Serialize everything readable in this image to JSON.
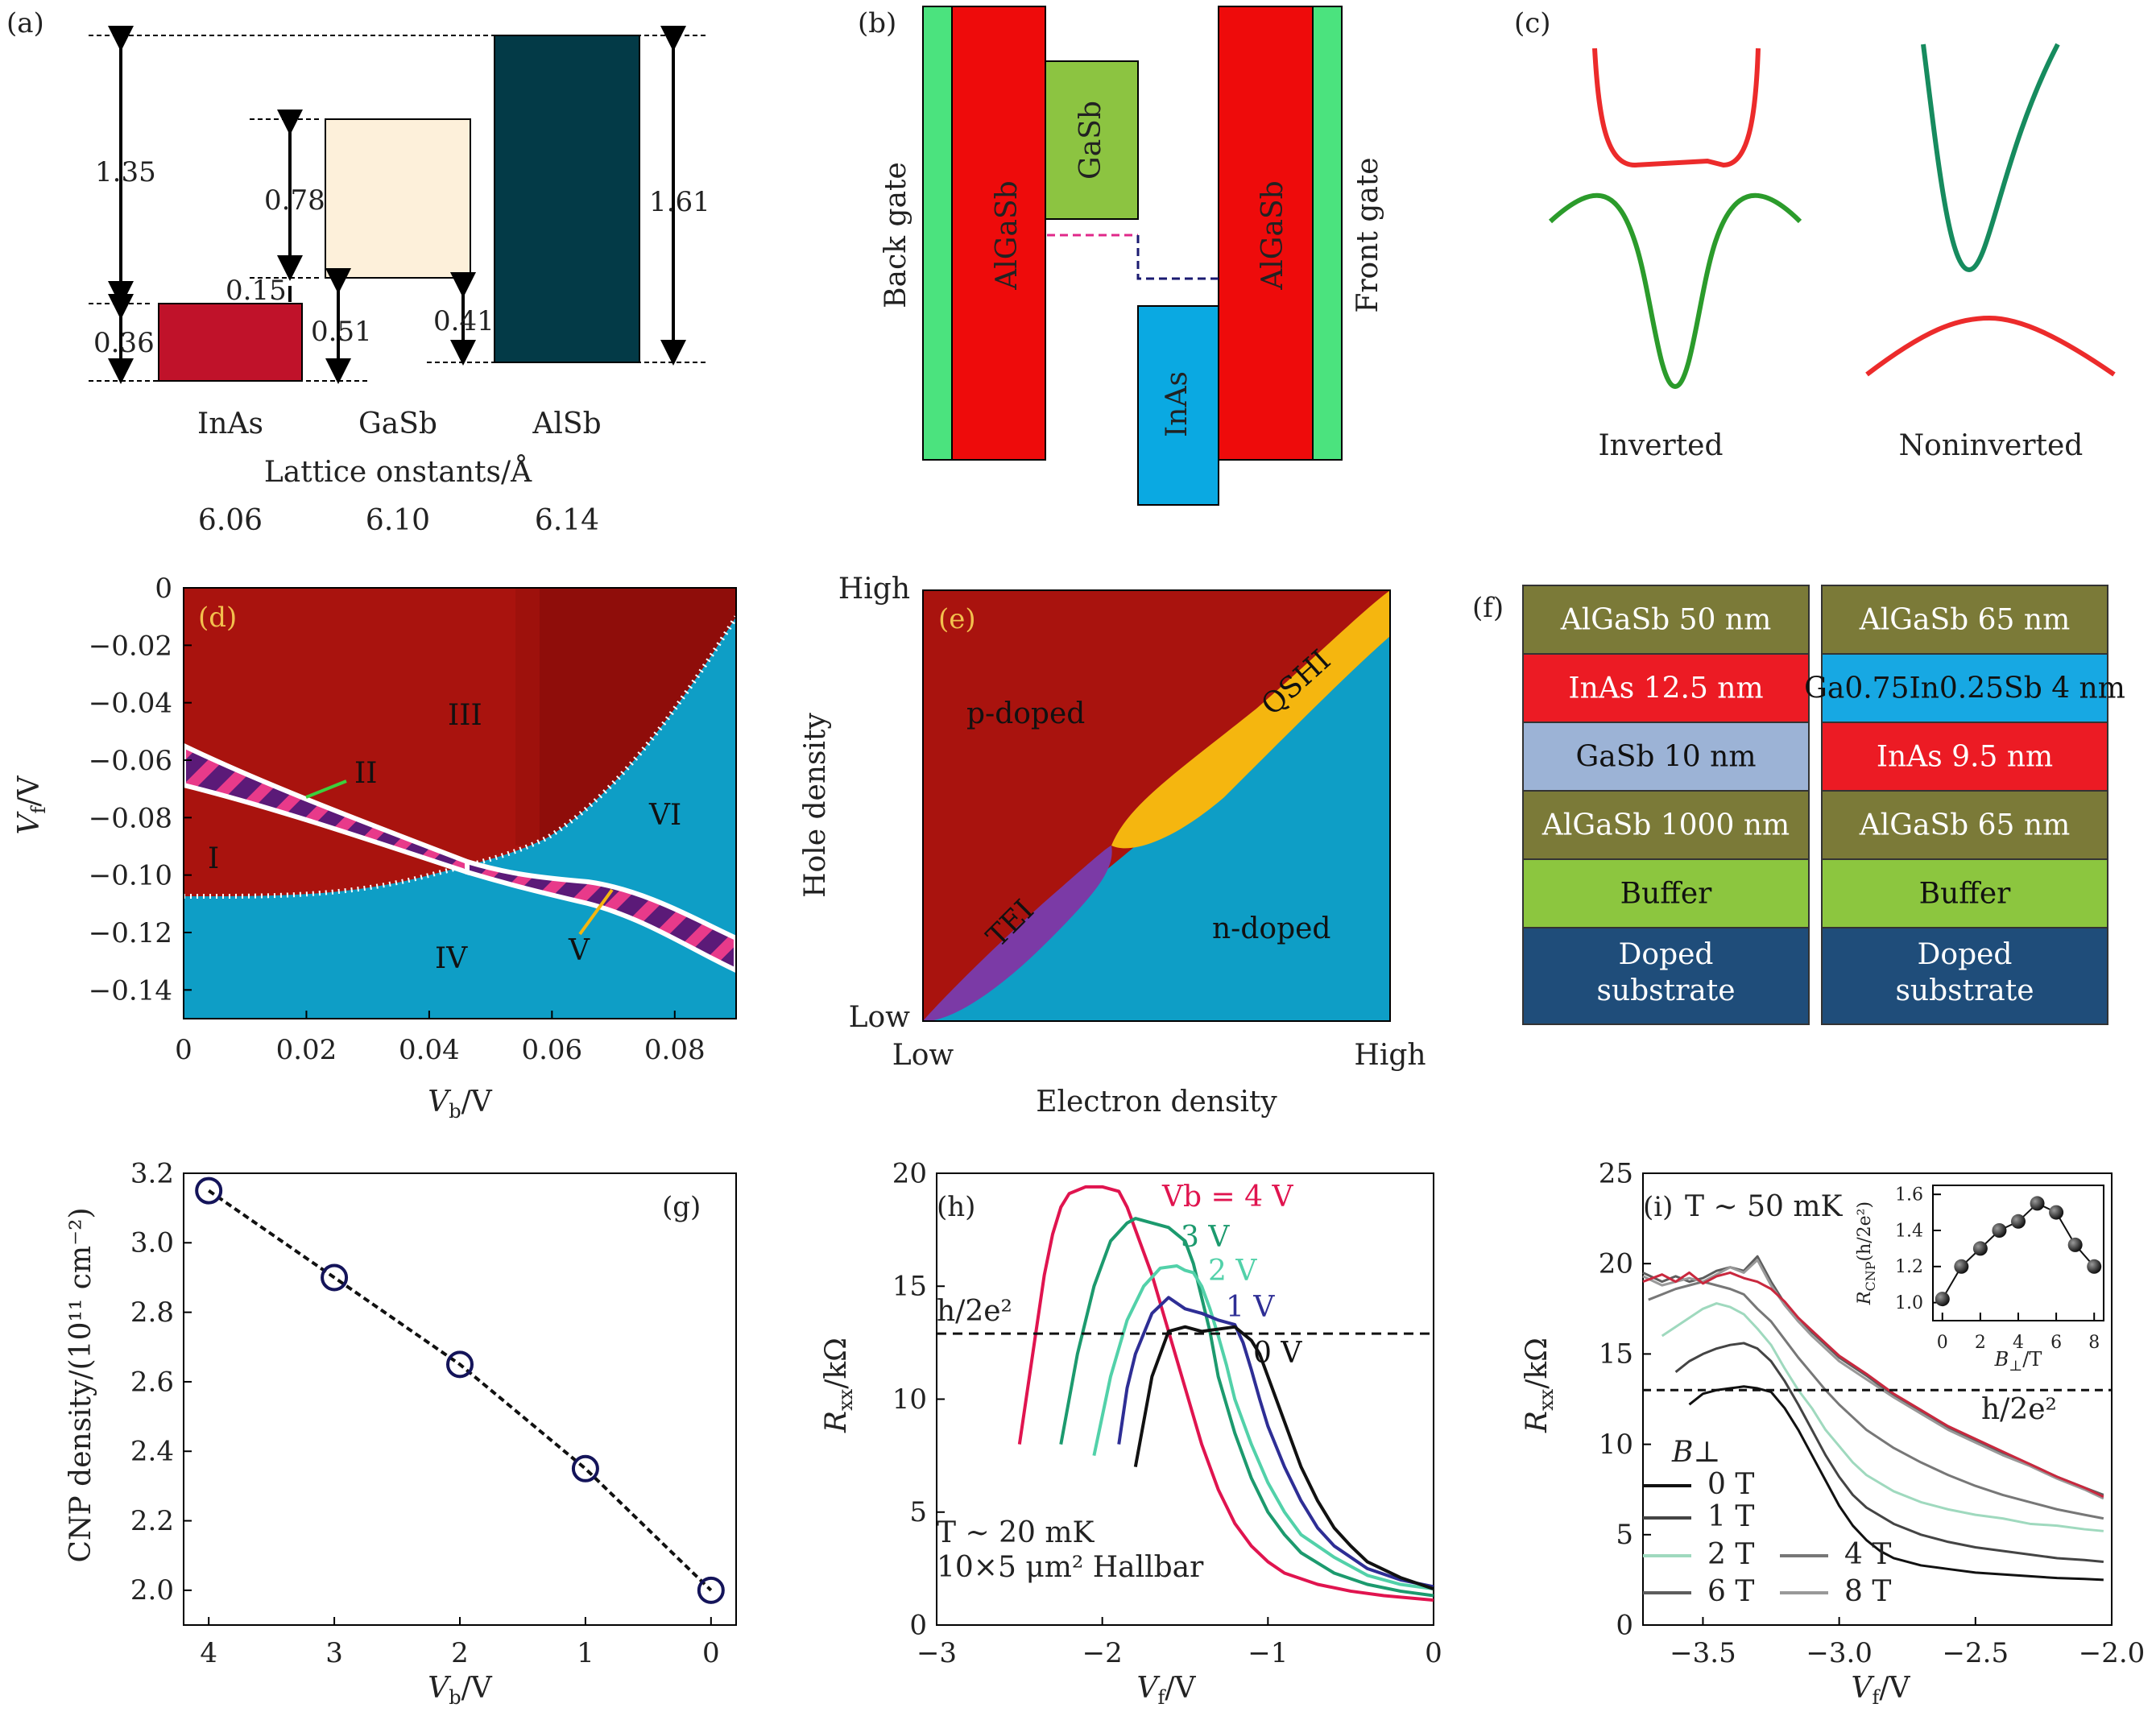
{
  "chart_data": [
    {
      "panel": "a",
      "type": "diagram",
      "materials": [
        {
          "name": "InAs",
          "lattice": "6.06"
        },
        {
          "name": "GaSb",
          "lattice": "6.10"
        },
        {
          "name": "AlSb",
          "lattice": "6.14"
        }
      ],
      "energies": [
        "1.35",
        "0.78",
        "0.15",
        "0.36",
        "0.51",
        "0.41",
        "1.61"
      ],
      "lattice_label": "Lattice onstants/Å",
      "colors": {
        "InAs": "#c0122a",
        "GaSb": "#fdf0da",
        "AlSb": "#033a47"
      }
    },
    {
      "panel": "b",
      "type": "diagram",
      "layers": [
        "Back gate",
        "AlGaSb",
        "GaSb",
        "InAs",
        "AlGaSb",
        "Front gate"
      ],
      "colors": {
        "gate": "#4be37e",
        "AlGaSb": "#ee0b0b",
        "GaSb": "#8cc441",
        "InAs": "#0aa9e2"
      }
    },
    {
      "panel": "c",
      "type": "diagram",
      "labels": [
        "Inverted",
        "Noninverted"
      ]
    },
    {
      "panel": "d",
      "type": "heatmap",
      "xlabel_main": "V",
      "xlabel_sub": "b",
      "xlabel_unit": "/V",
      "ylabel_main": "V",
      "ylabel_sub": "f",
      "ylabel_unit": "/V",
      "xlim": [
        0,
        0.09
      ],
      "ylim": [
        -0.15,
        0
      ],
      "xticks": [
        "0",
        "0.02",
        "0.04",
        "0.06",
        "0.08"
      ],
      "yticks": [
        "0",
        "−0.02",
        "−0.04",
        "−0.06",
        "−0.08",
        "−0.10",
        "−0.12",
        "−0.14"
      ],
      "regions": [
        "I",
        "II",
        "III",
        "IV",
        "V",
        "VI"
      ],
      "colors": {
        "p": "#a9130e",
        "n": "#0e9ec6",
        "band": "#7a1a4e"
      }
    },
    {
      "panel": "e",
      "type": "diagram",
      "xlabel": "Electron density",
      "ylabel": "Hole density",
      "xticks": [
        "Low",
        "High"
      ],
      "yticks": [
        "Low",
        "High"
      ],
      "regions": [
        "p-doped",
        "QSHI",
        "TEI",
        "n-doped"
      ],
      "colors": {
        "p": "#a9130e",
        "n": "#0e9ec6",
        "QSHI": "#f5b60f",
        "TEI": "#7b3aa6"
      }
    },
    {
      "panel": "f",
      "type": "table",
      "stacks": [
        [
          {
            "label": "AlGaSb 50 nm",
            "color": "#7b7a38"
          },
          {
            "label": "InAs 12.5 nm",
            "color": "#ec1b24"
          },
          {
            "label": "GaSb 10 nm",
            "color": "#9cb3d6"
          },
          {
            "label": "AlGaSb 1000 nm",
            "color": "#7b7a38"
          },
          {
            "label": "Buffer",
            "color": "#8cc63f"
          },
          {
            "label": "Doped substrate",
            "color": "#1f4d7a"
          }
        ],
        [
          {
            "label": "AlGaSb 65 nm",
            "color": "#7b7a38"
          },
          {
            "label": "Ga0.75In0.25Sb 4 nm",
            "color": "#17a8e3"
          },
          {
            "label": "InAs 9.5 nm",
            "color": "#ec1b24"
          },
          {
            "label": "AlGaSb 65 nm",
            "color": "#7b7a38"
          },
          {
            "label": "Buffer",
            "color": "#8cc63f"
          },
          {
            "label": "Doped substrate",
            "color": "#1f4d7a"
          }
        ]
      ]
    },
    {
      "panel": "g",
      "type": "scatter",
      "xlabel_main": "V",
      "xlabel_sub": "b",
      "xlabel_unit": "/V",
      "ylabel": "CNP density/(10¹¹ cm⁻²)",
      "x": [
        4,
        3,
        2,
        1,
        0
      ],
      "y": [
        3.15,
        2.9,
        2.65,
        2.35,
        2.0
      ],
      "xlim": [
        4.2,
        -0.2
      ],
      "ylim": [
        1.9,
        3.2
      ],
      "xticks": [
        "4",
        "3",
        "2",
        "1",
        "0"
      ],
      "yticks": [
        "2.0",
        "2.2",
        "2.4",
        "2.6",
        "2.8",
        "3.0",
        "3.2"
      ]
    },
    {
      "panel": "h",
      "type": "line",
      "xlabel_main": "V",
      "xlabel_sub": "f",
      "xlabel_unit": "/V",
      "ylabel_main": "R",
      "ylabel_sub": "xx",
      "ylabel_unit": "/kΩ",
      "xlim": [
        -3,
        0
      ],
      "ylim": [
        0,
        20
      ],
      "xticks": [
        "−3",
        "−2",
        "−1",
        "0"
      ],
      "yticks": [
        "0",
        "5",
        "10",
        "15",
        "20"
      ],
      "hline": 12.9,
      "hline_label": "h/2e²",
      "annotation": [
        "T ∼ 20 mK",
        "10×5 μm² Hallbar"
      ],
      "series": [
        {
          "name": "Vb = 4 V",
          "color": "#e0144f",
          "x": [
            -2.5,
            -2.45,
            -2.4,
            -2.35,
            -2.3,
            -2.25,
            -2.2,
            -2.1,
            -2.0,
            -1.9,
            -1.85,
            -1.8,
            -1.7,
            -1.6,
            -1.5,
            -1.4,
            -1.3,
            -1.2,
            -1.1,
            -1.0,
            -0.9,
            -0.7,
            -0.5,
            -0.3,
            0
          ],
          "y": [
            8.0,
            10.5,
            13.0,
            15.5,
            17.3,
            18.5,
            19.1,
            19.4,
            19.4,
            19.2,
            18.5,
            17.5,
            15.5,
            13.0,
            10.5,
            8.0,
            6.0,
            4.5,
            3.5,
            2.8,
            2.3,
            1.8,
            1.5,
            1.3,
            1.1
          ]
        },
        {
          "name": "3 V",
          "color": "#1c9a6e",
          "x": [
            -2.25,
            -2.15,
            -2.05,
            -1.95,
            -1.85,
            -1.8,
            -1.7,
            -1.6,
            -1.5,
            -1.45,
            -1.4,
            -1.35,
            -1.3,
            -1.2,
            -1.1,
            -1.0,
            -0.9,
            -0.8,
            -0.6,
            -0.4,
            -0.2,
            0
          ],
          "y": [
            8.0,
            12.0,
            15.0,
            17.0,
            17.8,
            18.0,
            17.8,
            17.6,
            17.0,
            16.0,
            14.5,
            13.0,
            11.0,
            8.5,
            6.5,
            5.0,
            4.0,
            3.2,
            2.3,
            1.8,
            1.5,
            1.3
          ]
        },
        {
          "name": "2 V",
          "color": "#52d1a9",
          "x": [
            -2.05,
            -1.95,
            -1.85,
            -1.75,
            -1.65,
            -1.55,
            -1.5,
            -1.45,
            -1.4,
            -1.35,
            -1.3,
            -1.25,
            -1.2,
            -1.1,
            -1.0,
            -0.9,
            -0.8,
            -0.6,
            -0.4,
            -0.2,
            0
          ],
          "y": [
            7.5,
            11.0,
            13.5,
            15.0,
            15.8,
            15.9,
            15.7,
            15.6,
            15.0,
            14.0,
            12.8,
            11.5,
            10.0,
            8.0,
            6.3,
            5.0,
            4.0,
            3.0,
            2.2,
            1.8,
            1.6
          ]
        },
        {
          "name": "1 V",
          "color": "#2e2e95",
          "x": [
            -1.9,
            -1.85,
            -1.8,
            -1.7,
            -1.6,
            -1.5,
            -1.4,
            -1.3,
            -1.2,
            -1.15,
            -1.1,
            -1.05,
            -1.0,
            -0.9,
            -0.8,
            -0.7,
            -0.6,
            -0.4,
            -0.2,
            0
          ],
          "y": [
            8.0,
            10.5,
            12.0,
            13.8,
            14.5,
            14.0,
            13.8,
            13.5,
            13.3,
            12.5,
            11.3,
            10.0,
            8.8,
            7.0,
            5.5,
            4.3,
            3.5,
            2.5,
            2.0,
            1.7
          ]
        },
        {
          "name": "0 V",
          "color": "#111111",
          "x": [
            -1.8,
            -1.75,
            -1.7,
            -1.6,
            -1.5,
            -1.4,
            -1.3,
            -1.2,
            -1.1,
            -1.05,
            -1.0,
            -0.95,
            -0.9,
            -0.8,
            -0.7,
            -0.6,
            -0.5,
            -0.4,
            -0.2,
            0
          ],
          "y": [
            7.0,
            9.0,
            11.0,
            13.0,
            13.2,
            13.0,
            13.1,
            13.2,
            12.6,
            12.0,
            11.0,
            10.0,
            9.0,
            7.0,
            5.5,
            4.3,
            3.5,
            2.8,
            2.1,
            1.6
          ]
        }
      ]
    },
    {
      "panel": "i",
      "type": "line",
      "xlabel_main": "V",
      "xlabel_sub": "f",
      "xlabel_unit": "/V",
      "ylabel_main": "R",
      "ylabel_sub": "xx",
      "ylabel_unit": "/kΩ",
      "xlim": [
        -3.72,
        -2.0
      ],
      "ylim": [
        0,
        25
      ],
      "xticks": [
        "−3.5",
        "−3.0",
        "−2.5",
        "−2.0"
      ],
      "yticks": [
        "0",
        "5",
        "10",
        "15",
        "20",
        "25"
      ],
      "hline": 13.0,
      "hline_label": "h/2e²",
      "annotation": "T ∼ 50 mK",
      "legend_title": "B⊥",
      "series": [
        {
          "name": "0 T",
          "color": "#111111",
          "x": [
            -3.55,
            -3.5,
            -3.45,
            -3.4,
            -3.35,
            -3.3,
            -3.25,
            -3.2,
            -3.15,
            -3.1,
            -3.05,
            -3.0,
            -2.95,
            -2.9,
            -2.85,
            -2.8,
            -2.7,
            -2.6,
            -2.5,
            -2.4,
            -2.3,
            -2.2,
            -2.1,
            -2.03
          ],
          "y": [
            12.2,
            12.8,
            13.0,
            13.1,
            13.2,
            13.1,
            12.9,
            12.0,
            10.8,
            9.4,
            8.0,
            6.6,
            5.5,
            4.7,
            4.1,
            3.7,
            3.3,
            3.1,
            2.9,
            2.8,
            2.7,
            2.6,
            2.55,
            2.5
          ]
        },
        {
          "name": "1 T",
          "color": "#444444",
          "x": [
            -3.6,
            -3.55,
            -3.5,
            -3.45,
            -3.4,
            -3.35,
            -3.3,
            -3.25,
            -3.2,
            -3.15,
            -3.1,
            -3.05,
            -3.0,
            -2.95,
            -2.9,
            -2.8,
            -2.7,
            -2.6,
            -2.5,
            -2.4,
            -2.3,
            -2.2,
            -2.1,
            -2.03
          ],
          "y": [
            14.0,
            14.6,
            15.0,
            15.3,
            15.5,
            15.6,
            15.3,
            14.6,
            13.5,
            12.2,
            10.8,
            9.4,
            8.2,
            7.2,
            6.5,
            5.6,
            5.0,
            4.6,
            4.3,
            4.1,
            3.9,
            3.7,
            3.6,
            3.5
          ]
        },
        {
          "name": "2 T",
          "color": "#9fd9be",
          "x": [
            -3.65,
            -3.6,
            -3.55,
            -3.5,
            -3.45,
            -3.4,
            -3.35,
            -3.3,
            -3.25,
            -3.2,
            -3.15,
            -3.1,
            -3.05,
            -3.0,
            -2.95,
            -2.9,
            -2.8,
            -2.7,
            -2.6,
            -2.5,
            -2.4,
            -2.3,
            -2.2,
            -2.1,
            -2.03
          ],
          "y": [
            16.0,
            16.5,
            17.0,
            17.5,
            17.8,
            17.6,
            17.2,
            16.4,
            15.5,
            14.2,
            13.0,
            12.0,
            10.8,
            9.9,
            9.0,
            8.3,
            7.4,
            6.8,
            6.4,
            6.1,
            5.9,
            5.6,
            5.5,
            5.3,
            5.2
          ]
        },
        {
          "name": "4 T",
          "color": "#777777",
          "x": [
            -3.7,
            -3.65,
            -3.6,
            -3.55,
            -3.5,
            -3.45,
            -3.4,
            -3.35,
            -3.3,
            -3.25,
            -3.2,
            -3.15,
            -3.1,
            -3.05,
            -3.0,
            -2.95,
            -2.9,
            -2.8,
            -2.7,
            -2.6,
            -2.5,
            -2.4,
            -2.3,
            -2.2,
            -2.1,
            -2.03
          ],
          "y": [
            18.0,
            18.3,
            18.6,
            18.8,
            19.0,
            18.8,
            18.6,
            18.3,
            17.5,
            16.8,
            15.8,
            14.8,
            13.9,
            13.0,
            12.2,
            11.5,
            10.8,
            9.8,
            9.0,
            8.3,
            7.7,
            7.2,
            6.8,
            6.4,
            6.1,
            5.9
          ]
        },
        {
          "name": "6 T",
          "color": "#5d5d5d",
          "x": [
            -3.72,
            -3.65,
            -3.6,
            -3.55,
            -3.5,
            -3.45,
            -3.4,
            -3.35,
            -3.3,
            -3.25,
            -3.2,
            -3.15,
            -3.1,
            -3.05,
            -3.0,
            -2.9,
            -2.8,
            -2.7,
            -2.6,
            -2.5,
            -2.4,
            -2.3,
            -2.2,
            -2.1,
            -2.03
          ],
          "y": [
            19.5,
            19.0,
            19.3,
            19.0,
            19.2,
            19.6,
            19.8,
            19.6,
            20.4,
            19.0,
            17.8,
            17.0,
            16.2,
            15.5,
            14.8,
            13.8,
            12.7,
            11.8,
            10.9,
            10.2,
            9.5,
            8.9,
            8.2,
            7.6,
            7.2
          ]
        },
        {
          "name": "8 T",
          "color": "#999999",
          "x": [
            -3.72,
            -3.65,
            -3.6,
            -3.55,
            -3.5,
            -3.45,
            -3.4,
            -3.35,
            -3.3,
            -3.25,
            -3.2,
            -3.15,
            -3.1,
            -3.05,
            -3.0,
            -2.9,
            -2.8,
            -2.7,
            -2.6,
            -2.5,
            -2.4,
            -2.3,
            -2.2,
            -2.1,
            -2.03
          ],
          "y": [
            19.3,
            18.8,
            19.0,
            19.2,
            19.0,
            19.4,
            19.8,
            19.5,
            20.2,
            18.8,
            17.7,
            16.8,
            16.0,
            15.3,
            14.6,
            13.6,
            12.6,
            11.7,
            10.8,
            10.1,
            9.4,
            8.8,
            8.1,
            7.5,
            7.0
          ]
        },
        {
          "name": "",
          "color": "#c9283e",
          "x": [
            -3.72,
            -3.65,
            -3.6,
            -3.55,
            -3.5,
            -3.45,
            -3.4,
            -3.35,
            -3.3,
            -3.25,
            -3.2,
            -3.15,
            -3.1,
            -3.05,
            -3.0,
            -2.9,
            -2.8,
            -2.7,
            -2.6,
            -2.5,
            -2.4,
            -2.3,
            -2.2,
            -2.1,
            -2.03
          ],
          "y": [
            19.0,
            19.4,
            19.0,
            19.5,
            18.9,
            19.3,
            19.5,
            19.2,
            19.0,
            18.6,
            17.9,
            17.0,
            16.3,
            15.6,
            14.9,
            13.9,
            12.8,
            11.9,
            11.0,
            10.3,
            9.6,
            8.9,
            8.2,
            7.6,
            7.1
          ]
        }
      ],
      "inset": {
        "xlabel_main": "B",
        "xlabel_sub": "⊥",
        "xlabel_unit": "/T",
        "ylabel_main": "R",
        "ylabel_sub": "CNP",
        "ylabel_unit": "(h/2e²)",
        "x": [
          0,
          1,
          2,
          3,
          4,
          5,
          6,
          7,
          8
        ],
        "y": [
          1.02,
          1.2,
          1.3,
          1.4,
          1.45,
          1.55,
          1.5,
          1.32,
          1.2
        ],
        "xlim": [
          -0.5,
          8.5
        ],
        "ylim": [
          0.9,
          1.65
        ],
        "xticks": [
          "0",
          "2",
          "4",
          "6",
          "8"
        ],
        "yticks": [
          "1.0",
          "1.2",
          "1.4",
          "1.6"
        ]
      }
    }
  ],
  "panel_labels": [
    "(a)",
    "(b)",
    "(c)",
    "(d)",
    "(e)",
    "(f)",
    "(g)",
    "(h)",
    "(i)"
  ]
}
